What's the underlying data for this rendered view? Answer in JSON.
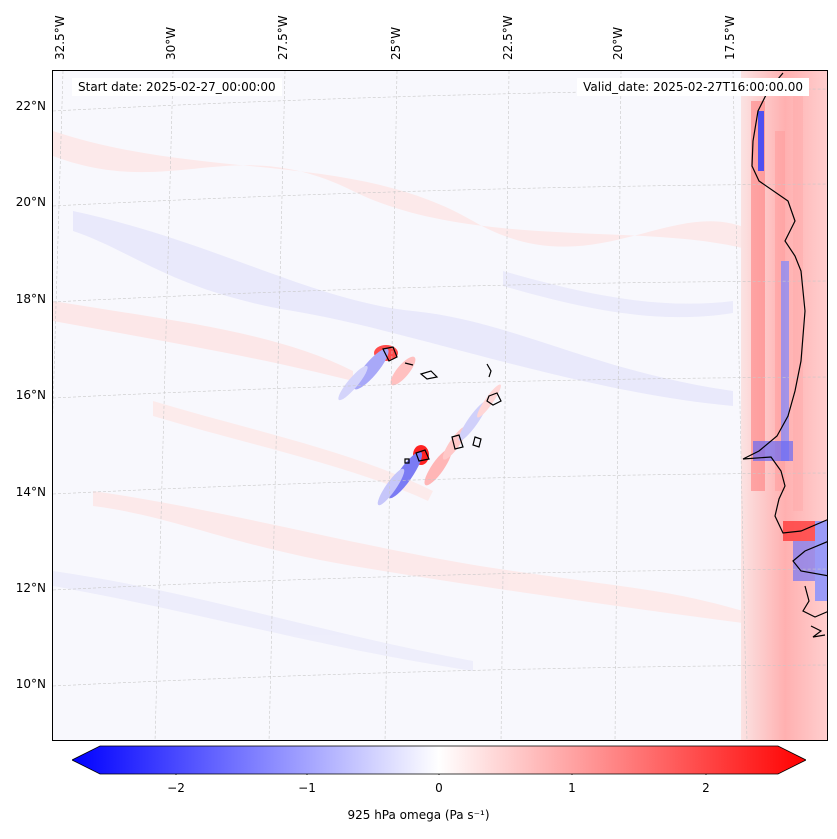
{
  "header": {
    "start_date": "Start date: 2025-02-27_00:00:00",
    "valid_date": "Valid_date: 2025-02-27T16:00:00.00"
  },
  "axes": {
    "lon_labels": [
      "32.5°W",
      "30°W",
      "27.5°W",
      "25°W",
      "22.5°W",
      "20°W",
      "17.5°W"
    ],
    "lat_labels": [
      "22°N",
      "20°N",
      "18°N",
      "16°N",
      "14°N",
      "12°N",
      "10°N"
    ]
  },
  "colorbar": {
    "tick_labels": [
      "−2",
      "−1",
      "0",
      "1",
      "2"
    ],
    "label": "925 hPa omega (Pa s⁻¹)",
    "range": [
      -2.6,
      2.6
    ],
    "cmap": "bwr",
    "colors": {
      "negative": "#0000ff",
      "zero": "#ffffff",
      "positive": "#ff0000"
    }
  },
  "map": {
    "region": "Cape Verde and West African coast",
    "gridlines": true,
    "coastline_color": "#000000"
  }
}
